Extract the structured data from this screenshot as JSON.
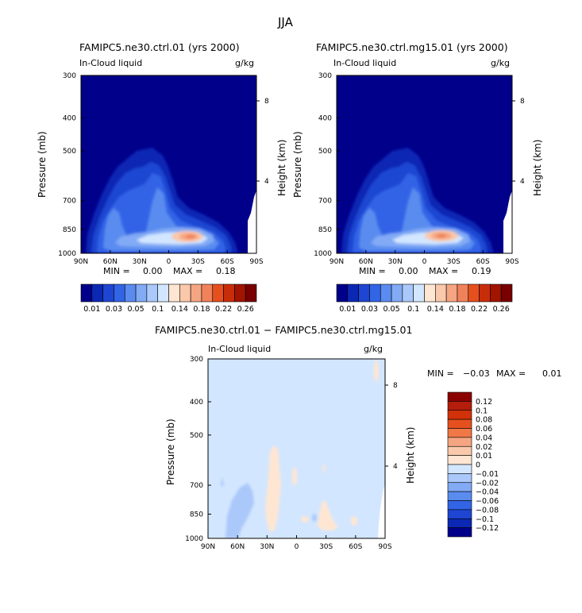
{
  "figure_title": "JJA",
  "chart_data": [
    {
      "type": "contour",
      "title": "FAMIPC5.ne30.ctrl.01 (yrs 2000)",
      "subtitle_left": "In-Cloud liquid",
      "subtitle_right": "g/kg",
      "xlabel": "",
      "ylabel": "Pressure (mb)",
      "ylabel_right": "Height (km)",
      "x_ticks": [
        "90N",
        "60N",
        "30N",
        "0",
        "30S",
        "60S",
        "90S"
      ],
      "y_ticks": [
        "300",
        "400",
        "500",
        "700",
        "850",
        "1000"
      ],
      "y_right_ticks": [
        "8",
        "4"
      ],
      "ylim": [
        1000,
        300
      ],
      "min_label": "MIN =",
      "min_value": "0.00",
      "max_label": "MAX =",
      "max_value": "0.18",
      "colorbar_labels": [
        "0.01",
        "0.03",
        "0.05",
        "0.1",
        "0.14",
        "0.18",
        "0.22",
        "0.26"
      ],
      "colors": [
        "#00008b",
        "#0a28b4",
        "#1e46d2",
        "#3264e6",
        "#5a8cf0",
        "#82aaf5",
        "#aac8fa",
        "#d2e6ff",
        "#ffe6d2",
        "#fac8aa",
        "#f5a582",
        "#f0825a",
        "#e6501e",
        "#c82d0a",
        "#a01400",
        "#780000"
      ]
    },
    {
      "type": "contour",
      "title": "FAMIPC5.ne30.ctrl.mg15.01 (yrs 2000)",
      "subtitle_left": "In-Cloud liquid",
      "subtitle_right": "g/kg",
      "ylabel": "Pressure (mb)",
      "ylabel_right": "Height (km)",
      "x_ticks": [
        "90N",
        "60N",
        "30N",
        "0",
        "30S",
        "60S",
        "90S"
      ],
      "y_ticks": [
        "300",
        "400",
        "500",
        "700",
        "850",
        "1000"
      ],
      "y_right_ticks": [
        "8",
        "4"
      ],
      "ylim": [
        1000,
        300
      ],
      "min_label": "MIN =",
      "min_value": "0.00",
      "max_label": "MAX =",
      "max_value": "0.19",
      "colorbar_labels": [
        "0.01",
        "0.03",
        "0.05",
        "0.1",
        "0.14",
        "0.18",
        "0.22",
        "0.26"
      ]
    },
    {
      "type": "contour",
      "title": "FAMIPC5.ne30.ctrl.01 − FAMIPC5.ne30.ctrl.mg15.01",
      "subtitle_left": "In-Cloud liquid",
      "subtitle_right": "g/kg",
      "ylabel": "Pressure (mb)",
      "ylabel_right": "Height (km)",
      "x_ticks": [
        "90N",
        "60N",
        "30N",
        "0",
        "30S",
        "60S",
        "90S"
      ],
      "y_ticks": [
        "300",
        "400",
        "500",
        "700",
        "850",
        "1000"
      ],
      "y_right_ticks": [
        "8",
        "4"
      ],
      "ylim": [
        1000,
        300
      ],
      "min_label": "MIN =",
      "min_value": "−0.03",
      "max_label": "MAX =",
      "max_value": "0.01",
      "colorbar_labels": [
        "0.12",
        "0.1",
        "0.08",
        "0.06",
        "0.04",
        "0.02",
        "0.01",
        "0",
        "−0.01",
        "−0.02",
        "−0.04",
        "−0.06",
        "−0.08",
        "−0.1",
        "−0.12"
      ],
      "colors": [
        "#8b0000",
        "#b41e0a",
        "#d2320a",
        "#e6501e",
        "#f07846",
        "#f5a582",
        "#fac8aa",
        "#ffe6d2",
        "#d2e6ff",
        "#aac8fa",
        "#82aaf5",
        "#5a8cf0",
        "#3264e6",
        "#1e46d2",
        "#0a28b4",
        "#00008b"
      ]
    }
  ]
}
